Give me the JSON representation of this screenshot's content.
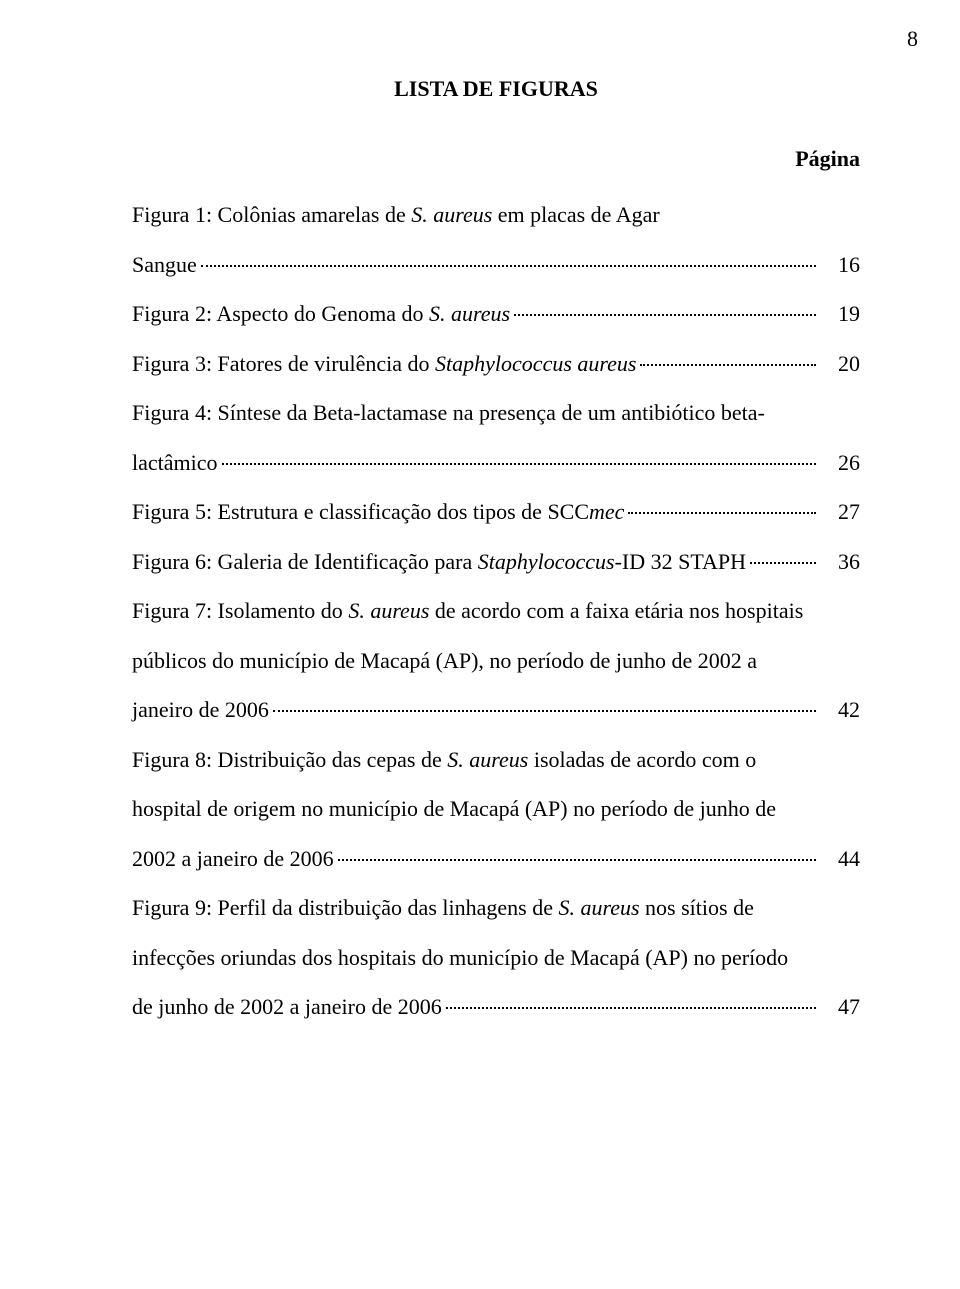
{
  "pageNumber": "8",
  "title": "LISTA DE FIGURAS",
  "paginaLabel": "Página",
  "entries": [
    {
      "pre1": "Figura 1: Colônias amarelas de ",
      "it1": "S. aureus",
      "post1": " em placas de Agar",
      "pre2": "Sangue",
      "pg": "16"
    },
    {
      "pre1": "Figura 2: Aspecto do Genoma do ",
      "it1": "S. aureus",
      "pg": "19"
    },
    {
      "pre1": "Figura 3: Fatores de virulência do ",
      "it1": "Staphylococcus aureus",
      "pg": "20"
    },
    {
      "pre1": "Figura 4: Síntese da Beta-lactamase na presença de um antibiótico beta-",
      "pre2": "lactâmico",
      "pg": "26"
    },
    {
      "pre1": "Figura 5: Estrutura e classificação dos tipos de SCC",
      "it1": "mec",
      "pg": "27"
    },
    {
      "pre1": "Figura 6: Galeria de Identificação para ",
      "it1": "Staphylococcus",
      "post1": "-ID 32 STAPH",
      "pg": "36"
    },
    {
      "pre1": "Figura 7: Isolamento do ",
      "it1": "S. aureus",
      "post1": " de acordo com a faixa etária nos hospitais",
      "mid": "públicos do município de Macapá (AP), no período de junho de 2002 a",
      "pre2": "janeiro de 2006",
      "pg": "42"
    },
    {
      "pre1": "Figura 8: Distribuição das cepas de ",
      "it1": "S. aureus",
      "post1": " isoladas de acordo com o",
      "mid": "hospital de origem no município de Macapá (AP) no período de junho de",
      "pre2": "2002 a janeiro de 2006",
      "pg": "44"
    },
    {
      "pre1": "Figura 9: Perfil da distribuição das linhagens de ",
      "it1": "S. aureus",
      "post1": " nos sítios de",
      "mid": "infecções oriundas dos hospitais do município de Macapá (AP) no período",
      "pre2": "de junho de 2002 a janeiro de 2006",
      "pg": "47"
    }
  ]
}
